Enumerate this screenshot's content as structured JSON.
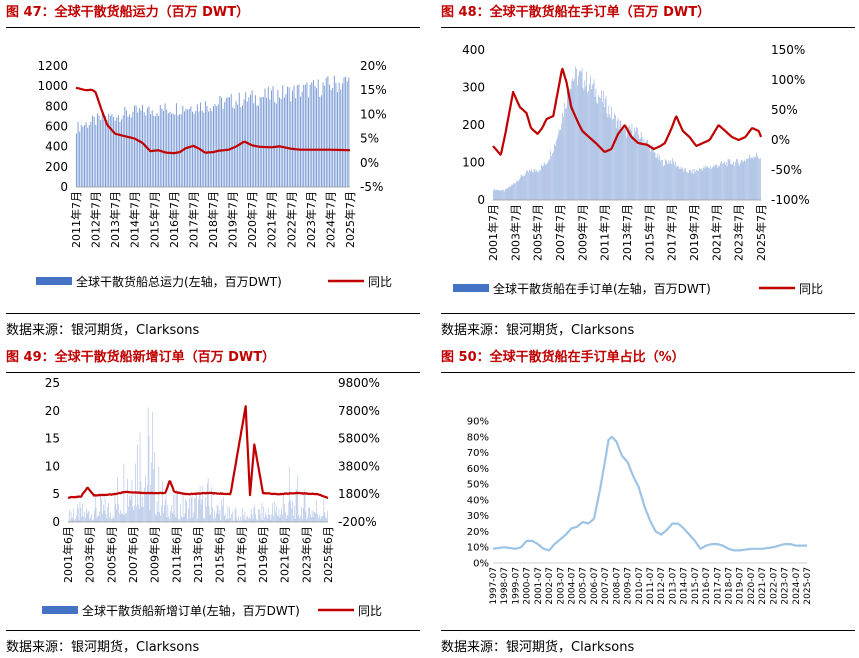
{
  "colors": {
    "bar": "#4472c4",
    "line": "#c00000",
    "line_light": "#9dc3e6",
    "title": "#c00000"
  },
  "panels": [
    {
      "id": "fig47",
      "title": "图 47：全球干散货船运力（百万 DWT）",
      "source": "数据来源：银河期货，Clarksons",
      "chart_data": {
        "type": "bar",
        "left_axis": {
          "min": 0,
          "max": 1200,
          "ticks": [
            "0",
            "200",
            "400",
            "600",
            "800",
            "1000",
            "1200"
          ]
        },
        "right_axis": {
          "min": -5,
          "max": 20,
          "ticks": [
            "-5%",
            "0%",
            "5%",
            "10%",
            "15%",
            "20%"
          ]
        },
        "x_ticks": [
          "2011年7月",
          "2012年7月",
          "2013年7月",
          "2014年7月",
          "2015年7月",
          "2016年7月",
          "2017年7月",
          "2018年7月",
          "2019年7月",
          "2020年7月",
          "2021年7月",
          "2022年7月",
          "2023年7月",
          "2024年7月",
          "2025年7月"
        ],
        "bars": {
          "name": "全球干散货船总运力(左轴，百万DWT)",
          "keypoints": [
            [
              0,
              590
            ],
            [
              1,
              660
            ],
            [
              2,
              710
            ],
            [
              3,
              740
            ],
            [
              4,
              760
            ],
            [
              5,
              780
            ],
            [
              6,
              800
            ],
            [
              7,
              820
            ],
            [
              8,
              850
            ],
            [
              9,
              880
            ],
            [
              10,
              910
            ],
            [
              11,
              940
            ],
            [
              12,
              970
            ],
            [
              13,
              1010
            ],
            [
              14,
              1050
            ]
          ]
        },
        "line": {
          "name": "同比",
          "keypoints": [
            [
              0,
              15.5
            ],
            [
              0.5,
              15
            ],
            [
              0.8,
              15.1
            ],
            [
              1,
              14.6
            ],
            [
              1.3,
              11
            ],
            [
              1.6,
              7.8
            ],
            [
              2,
              6
            ],
            [
              2.4,
              5.6
            ],
            [
              3,
              5
            ],
            [
              3.4,
              4.1
            ],
            [
              3.8,
              2.4
            ],
            [
              4.2,
              2.6
            ],
            [
              4.6,
              2.1
            ],
            [
              5,
              2
            ],
            [
              5.3,
              2.2
            ],
            [
              5.6,
              3
            ],
            [
              6,
              3.5
            ],
            [
              6.3,
              2.9
            ],
            [
              6.6,
              2.1
            ],
            [
              7,
              2.2
            ],
            [
              7.3,
              2.5
            ],
            [
              7.8,
              2.7
            ],
            [
              8.2,
              3.4
            ],
            [
              8.6,
              4.4
            ],
            [
              9,
              3.6
            ],
            [
              9.4,
              3.3
            ],
            [
              10,
              3.2
            ],
            [
              10.4,
              3.4
            ],
            [
              11,
              2.9
            ],
            [
              11.5,
              2.7
            ],
            [
              12,
              2.7
            ],
            [
              13,
              2.7
            ],
            [
              14,
              2.6
            ]
          ]
        },
        "legend_placement": "bottom"
      }
    },
    {
      "id": "fig48",
      "title": "图 48：全球干散货船在手订单（百万 DWT）",
      "source": "数据来源：银河期货，Clarksons",
      "chart_data": {
        "type": "bar",
        "left_axis": {
          "min": 0,
          "max": 400,
          "ticks": [
            "0",
            "100",
            "200",
            "300",
            "400"
          ]
        },
        "right_axis": {
          "min": -100,
          "max": 150,
          "ticks": [
            "-100%",
            "-50%",
            "0%",
            "50%",
            "100%",
            "150%"
          ]
        },
        "x_ticks": [
          "2001年7月",
          "2003年7月",
          "2005年7月",
          "2007年7月",
          "2009年7月",
          "2011年7月",
          "2013年7月",
          "2015年7月",
          "2017年7月",
          "2019年7月",
          "2021年7月",
          "2023年7月",
          "2025年7月"
        ],
        "bars": {
          "name": "全球干散货船在手订单(左轴，百万DWT)",
          "keypoints": [
            [
              0,
              28
            ],
            [
              0.5,
              25
            ],
            [
              0.9,
              42
            ],
            [
              1.2,
              60
            ],
            [
              1.6,
              75
            ],
            [
              2,
              80
            ],
            [
              2.4,
              100
            ],
            [
              2.8,
              155
            ],
            [
              3,
              200
            ],
            [
              3.3,
              275
            ],
            [
              3.5,
              325
            ],
            [
              3.8,
              330
            ],
            [
              4.1,
              320
            ],
            [
              4.4,
              305
            ],
            [
              4.8,
              275
            ],
            [
              5.1,
              250
            ],
            [
              5.4,
              220
            ],
            [
              5.7,
              200
            ],
            [
              6,
              180
            ],
            [
              6.3,
              190
            ],
            [
              6.5,
              175
            ],
            [
              6.8,
              160
            ],
            [
              7.1,
              140
            ],
            [
              7.3,
              120
            ],
            [
              7.6,
              100
            ],
            [
              8,
              105
            ],
            [
              8.3,
              90
            ],
            [
              8.6,
              78
            ],
            [
              9,
              75
            ],
            [
              9.4,
              85
            ],
            [
              9.8,
              88
            ],
            [
              10.2,
              95
            ],
            [
              10.6,
              100
            ],
            [
              11,
              100
            ],
            [
              11.4,
              110
            ],
            [
              11.7,
              120
            ],
            [
              12,
              115
            ]
          ]
        },
        "line": {
          "name": "同比",
          "keypoints": [
            [
              0,
              -10
            ],
            [
              0.35,
              -25
            ],
            [
              0.55,
              10
            ],
            [
              0.7,
              40
            ],
            [
              0.9,
              80
            ],
            [
              1.2,
              55
            ],
            [
              1.5,
              45
            ],
            [
              1.7,
              20
            ],
            [
              2,
              10
            ],
            [
              2.2,
              20
            ],
            [
              2.4,
              35
            ],
            [
              2.7,
              40
            ],
            [
              3,
              100
            ],
            [
              3.1,
              120
            ],
            [
              3.3,
              95
            ],
            [
              3.5,
              55
            ],
            [
              3.8,
              30
            ],
            [
              4,
              15
            ],
            [
              4.3,
              5
            ],
            [
              4.6,
              -5
            ],
            [
              5,
              -20
            ],
            [
              5.3,
              -15
            ],
            [
              5.6,
              10
            ],
            [
              5.9,
              25
            ],
            [
              6.2,
              5
            ],
            [
              6.5,
              -5
            ],
            [
              6.9,
              -8
            ],
            [
              7.2,
              -15
            ],
            [
              7.5,
              -10
            ],
            [
              7.7,
              -5
            ],
            [
              8,
              20
            ],
            [
              8.2,
              40
            ],
            [
              8.5,
              15
            ],
            [
              8.8,
              5
            ],
            [
              9.1,
              -10
            ],
            [
              9.4,
              -5
            ],
            [
              9.7,
              0
            ],
            [
              10.1,
              25
            ],
            [
              10.4,
              15
            ],
            [
              10.7,
              5
            ],
            [
              11,
              0
            ],
            [
              11.3,
              5
            ],
            [
              11.6,
              20
            ],
            [
              11.9,
              15
            ],
            [
              12.1,
              -5
            ]
          ]
        },
        "legend_placement": "bottom"
      }
    },
    {
      "id": "fig49",
      "title": "图 49：全球干散货船新增订单（百万 DWT）",
      "source": "数据来源：银河期货，Clarksons",
      "chart_data": {
        "type": "bar",
        "left_axis": {
          "min": 0,
          "max": 25,
          "ticks": [
            "0",
            "5",
            "10",
            "15",
            "20",
            "25"
          ]
        },
        "right_axis": {
          "min": -2200,
          "max": 9800,
          "ticks": [
            "-200%",
            "1800%",
            "3800%",
            "5800%",
            "7800%",
            "9800%"
          ]
        },
        "x_ticks": [
          "2001年6月",
          "2003年6月",
          "2005年6月",
          "2007年6月",
          "2009年6月",
          "2011年6月",
          "2013年6月",
          "2015年6月",
          "2017年6月",
          "2019年6月",
          "2021年6月",
          "2023年6月",
          "2025年6月"
        ],
        "bars": {
          "name": "全球干散货船新增订单(左轴，百万DWT)",
          "keypoints": [
            [
              0,
              1.5
            ],
            [
              1,
              2.5
            ],
            [
              2,
              3
            ],
            [
              2.6,
              9
            ],
            [
              3,
              14
            ],
            [
              3.5,
              17
            ],
            [
              4,
              8
            ],
            [
              4.5,
              4
            ],
            [
              5,
              3
            ],
            [
              6,
              4
            ],
            [
              6.5,
              5
            ],
            [
              7,
              2.5
            ],
            [
              7.5,
              1.5
            ],
            [
              8,
              1.5
            ],
            [
              9,
              2
            ],
            [
              10,
              3.5
            ],
            [
              11,
              3.5
            ],
            [
              12,
              3
            ]
          ]
        },
        "line": {
          "name": "同比",
          "keypoints": [
            [
              0,
              -100
            ],
            [
              0.6,
              0
            ],
            [
              0.9,
              800
            ],
            [
              1.2,
              100
            ],
            [
              2.2,
              200
            ],
            [
              2.6,
              400
            ],
            [
              3.5,
              300
            ],
            [
              4.5,
              300
            ],
            [
              4.7,
              1400
            ],
            [
              4.9,
              400
            ],
            [
              5.5,
              200
            ],
            [
              6.5,
              300
            ],
            [
              7.5,
              200
            ],
            [
              8.2,
              7800
            ],
            [
              8.4,
              100
            ],
            [
              8.6,
              4500
            ],
            [
              9,
              300
            ],
            [
              9.7,
              200
            ],
            [
              10.5,
              300
            ],
            [
              11.5,
              200
            ],
            [
              12,
              -100
            ]
          ]
        },
        "legend_placement": "bottom"
      }
    },
    {
      "id": "fig50",
      "title": "图 50：全球干散货船在手订单占比（%）",
      "source": "数据来源：银河期货，Clarksons",
      "chart_data": {
        "type": "line",
        "y_axis": {
          "min": 0,
          "max": 90,
          "ticks": [
            "0%",
            "10%",
            "20%",
            "30%",
            "40%",
            "50%",
            "60%",
            "70%",
            "80%",
            "90%"
          ]
        },
        "x_ticks": [
          "1997-07",
          "1998-07",
          "1999-07",
          "2000-07",
          "2001-07",
          "2002-07",
          "2003-07",
          "2004-07",
          "2005-07",
          "2006-07",
          "2007-07",
          "2008-07",
          "2009-07",
          "2010-07",
          "2011-07",
          "2012-07",
          "2013-07",
          "2014-07",
          "2015-07",
          "2016-07",
          "2017-07",
          "2018-07",
          "2019-07",
          "2020-07",
          "2021-07",
          "2022-07",
          "2023-07",
          "2024-07",
          "2025-07"
        ],
        "series": [
          {
            "name": "在手订单占比",
            "keypoints": [
              [
                0,
                9
              ],
              [
                1,
                10
              ],
              [
                2,
                9
              ],
              [
                2.5,
                10
              ],
              [
                3,
                14
              ],
              [
                3.5,
                14
              ],
              [
                4,
                12
              ],
              [
                4.5,
                9
              ],
              [
                5,
                8
              ],
              [
                5.5,
                12
              ],
              [
                6,
                15
              ],
              [
                6.5,
                18
              ],
              [
                7,
                22
              ],
              [
                7.5,
                23
              ],
              [
                8,
                26
              ],
              [
                8.5,
                25
              ],
              [
                9,
                28
              ],
              [
                9.5,
                45
              ],
              [
                10,
                65
              ],
              [
                10.3,
                78
              ],
              [
                10.6,
                80
              ],
              [
                11,
                77
              ],
              [
                11.5,
                68
              ],
              [
                12,
                64
              ],
              [
                12.5,
                55
              ],
              [
                13,
                48
              ],
              [
                13.5,
                36
              ],
              [
                14,
                27
              ],
              [
                14.5,
                20
              ],
              [
                15,
                18
              ],
              [
                15.5,
                21
              ],
              [
                16,
                25
              ],
              [
                16.5,
                25
              ],
              [
                17,
                22
              ],
              [
                17.5,
                18
              ],
              [
                18,
                14
              ],
              [
                18.5,
                9
              ],
              [
                19,
                11
              ],
              [
                19.5,
                12
              ],
              [
                20,
                12
              ],
              [
                20.5,
                11
              ],
              [
                21,
                9
              ],
              [
                21.5,
                8
              ],
              [
                22,
                8
              ],
              [
                23,
                9
              ],
              [
                24,
                9
              ],
              [
                25,
                10
              ],
              [
                26,
                12
              ],
              [
                26.5,
                12
              ],
              [
                27,
                11
              ]
            ]
          }
        ],
        "legend_placement": "none"
      }
    }
  ]
}
